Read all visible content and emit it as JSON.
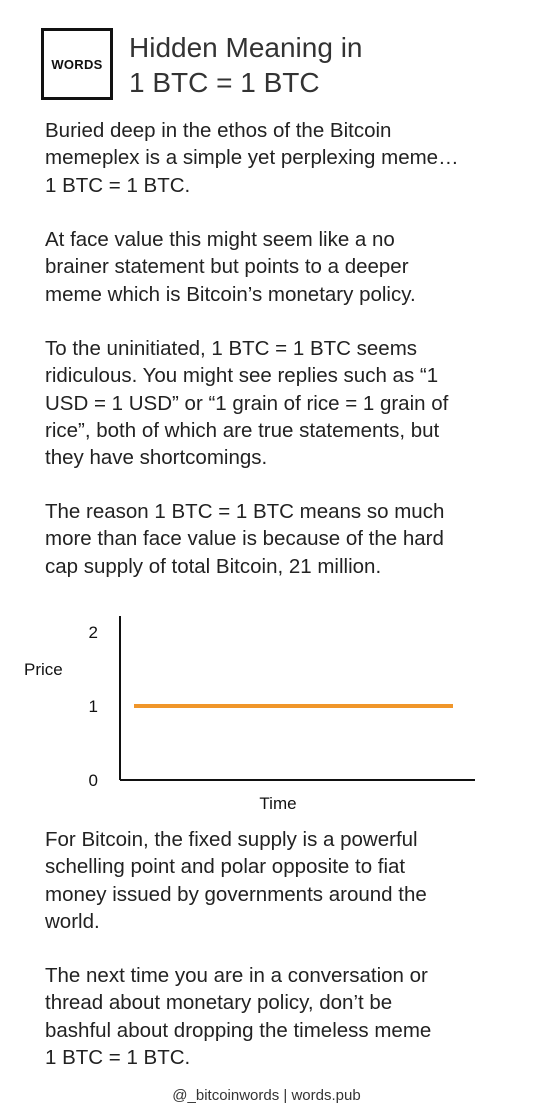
{
  "logo": {
    "text": "WORDS"
  },
  "header": {
    "title_lines": [
      "Hidden Meaning in",
      "1 BTC = 1 BTC"
    ]
  },
  "paragraphs": [
    [
      "Buried deep in the ethos of the Bitcoin",
      "memeplex is a simple yet perplexing meme…",
      "1 BTC = 1 BTC."
    ],
    [
      "At face value this might seem like a no",
      "brainer statement but points to a deeper",
      "meme which is Bitcoin’s monetary policy."
    ],
    [
      "To the uninitiated, 1 BTC = 1 BTC seems",
      "ridiculous. You might see replies such as “1",
      "USD = 1 USD” or “1 grain of rice = 1 grain of",
      "rice”, both of which are true statements, but",
      "they have shortcomings."
    ],
    [
      "The reason 1 BTC = 1 BTC means so much",
      "more than face value is because of the hard",
      "cap supply of total Bitcoin, 21 million."
    ],
    [
      "For Bitcoin, the fixed supply is a powerful",
      "schelling point and polar opposite to fiat",
      "money issued by governments around the",
      "world."
    ],
    [
      "The next time you are in a conversation or",
      "thread about monetary policy, don’t be",
      "bashful about dropping the timeless meme",
      "1 BTC = 1 BTC."
    ]
  ],
  "chart_data": {
    "type": "line",
    "xlabel": "Time",
    "ylabel": "Price",
    "ylim": [
      0,
      2
    ],
    "yticks": [
      "0",
      "1",
      "2"
    ],
    "grid": false,
    "series": [
      {
        "x": [
          0,
          1
        ],
        "values": [
          1,
          1
        ],
        "color": "#f0962a"
      }
    ]
  },
  "footer": {
    "text": "@_bitcoinwords | words.pub"
  }
}
